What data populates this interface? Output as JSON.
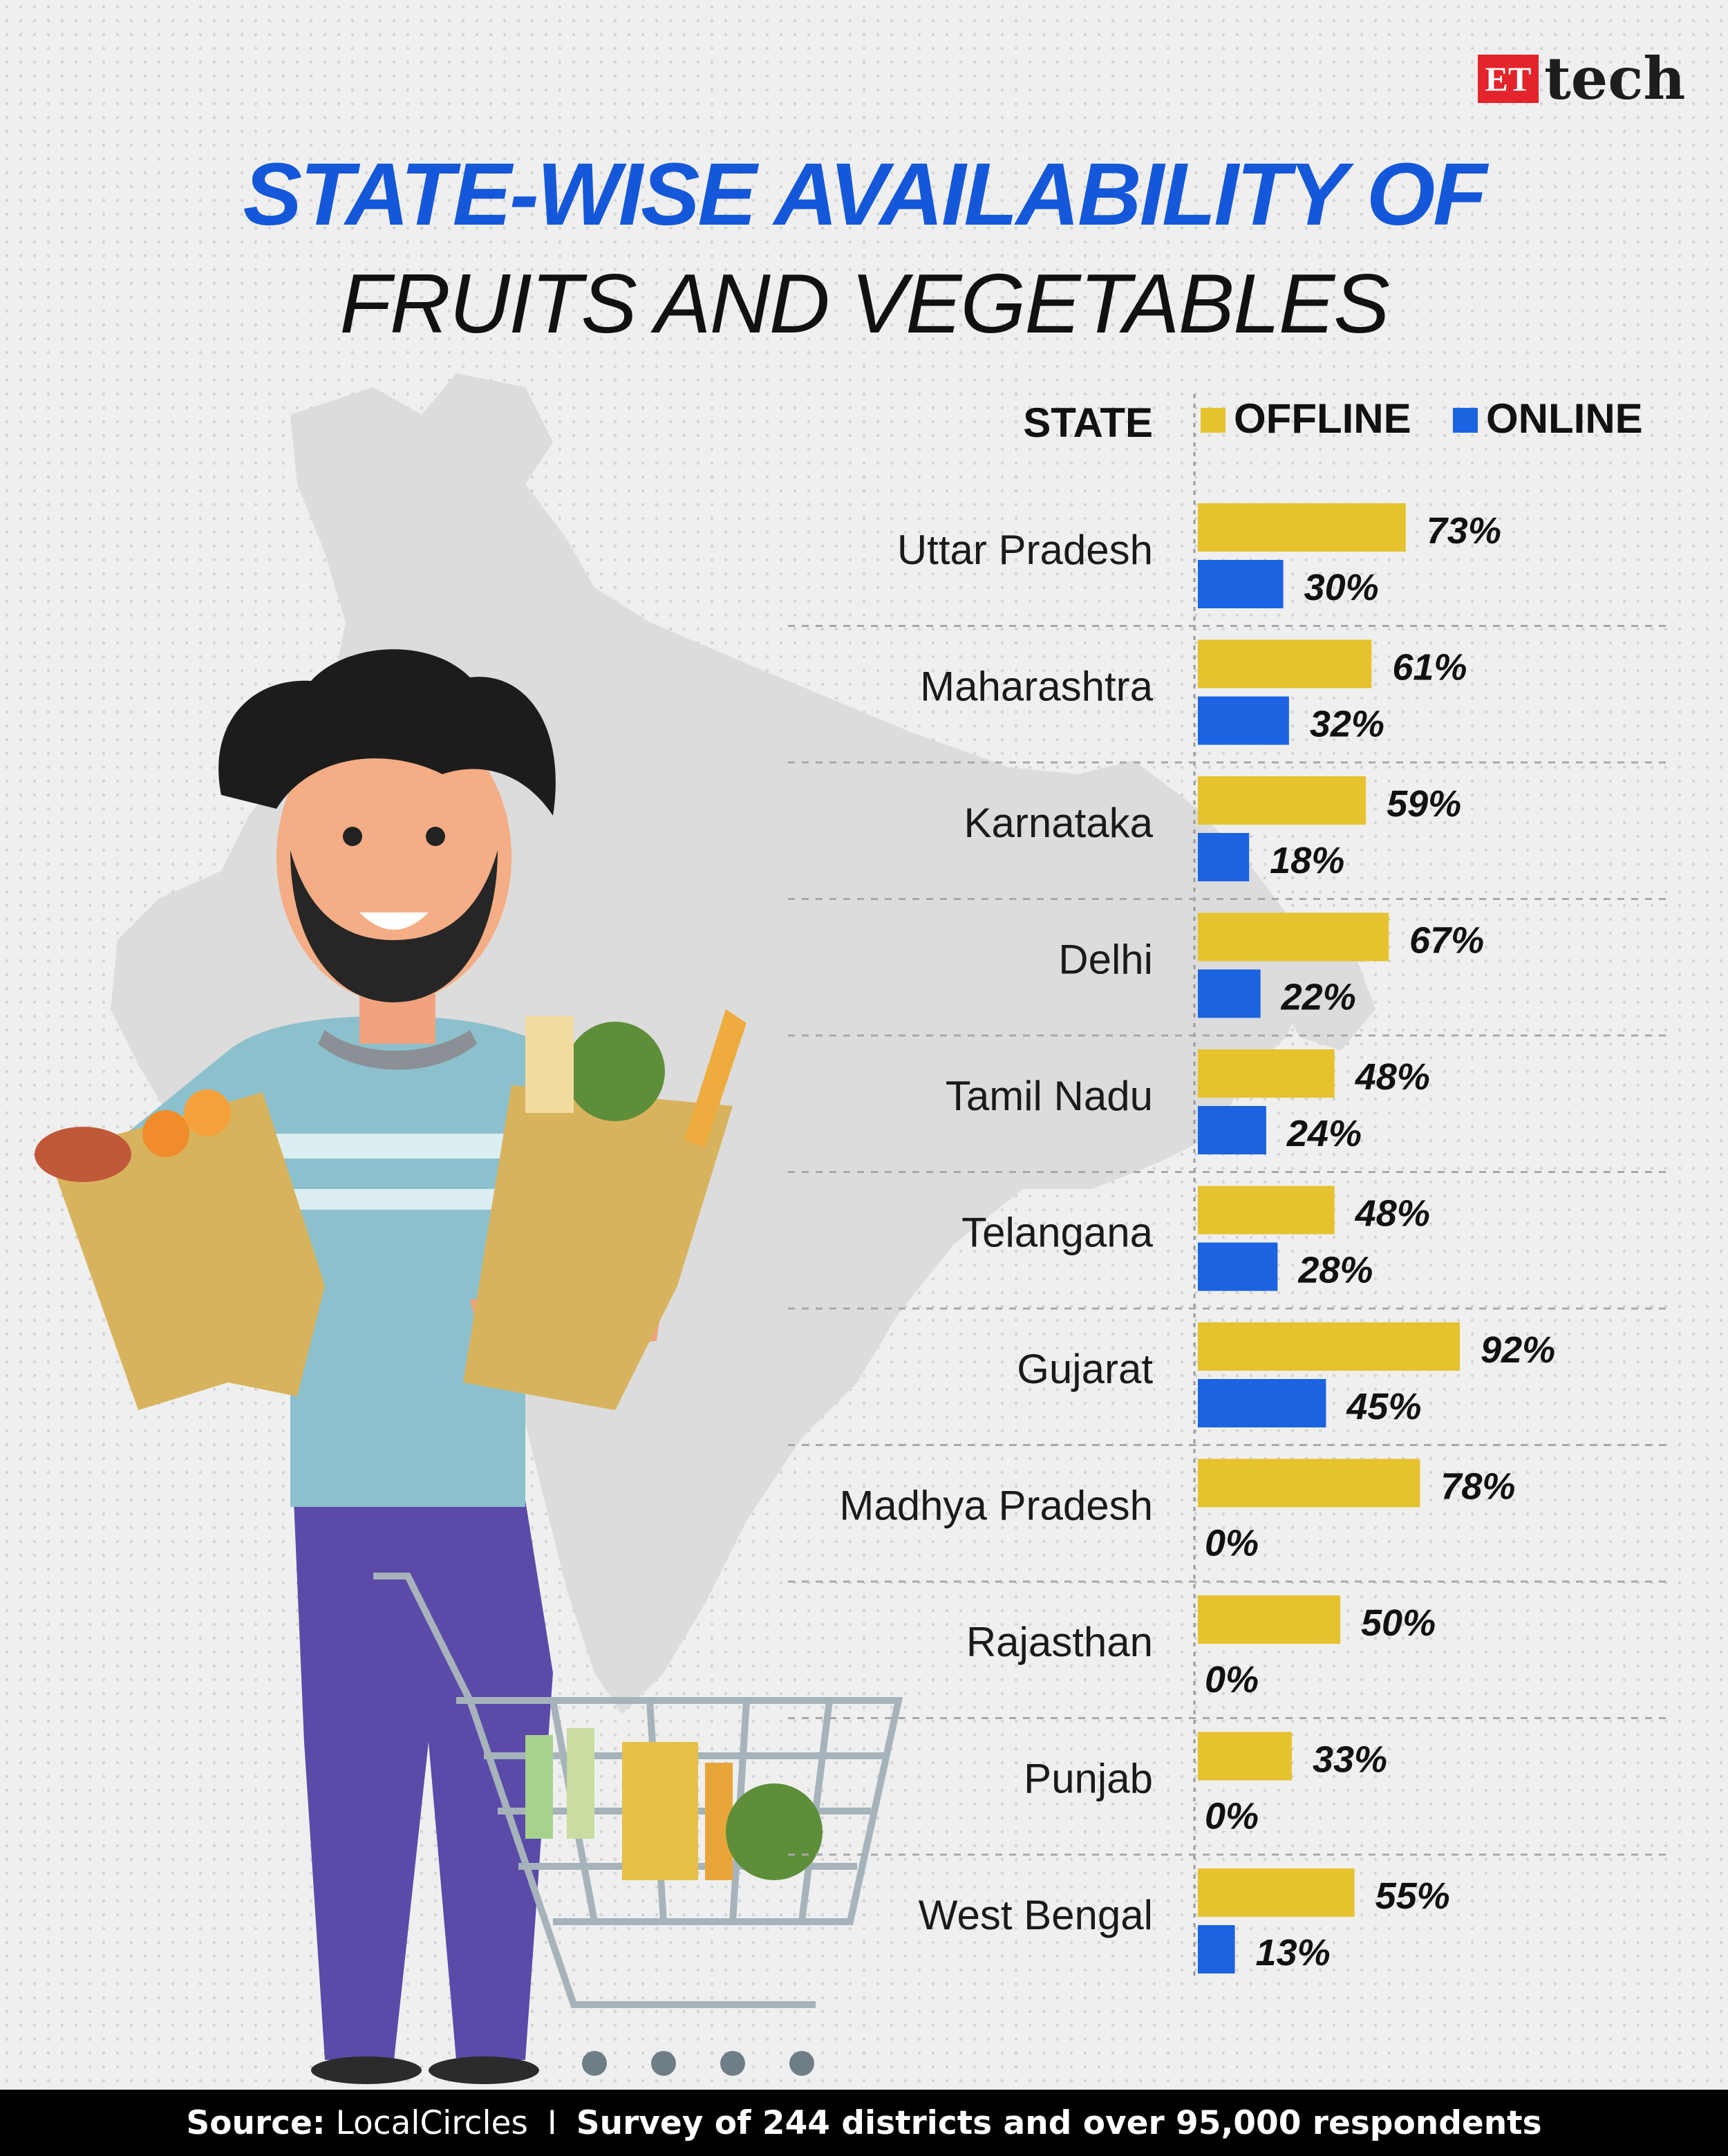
{
  "brand": {
    "mark": "ET",
    "name": "tech"
  },
  "title": {
    "line1": "STATE-WISE AVAILABILITY OF",
    "line2": "FRUITS AND VEGETABLES"
  },
  "colors": {
    "offline": "#e5c22e",
    "online": "#1b63e0",
    "title": "#1457d9"
  },
  "chart_data": {
    "type": "bar",
    "orientation": "horizontal",
    "category_header": "STATE",
    "categories": [
      "Uttar Pradesh",
      "Maharashtra",
      "Karnataka",
      "Delhi",
      "Tamil Nadu",
      "Telangana",
      "Gujarat",
      "Madhya Pradesh",
      "Rajasthan",
      "Punjab",
      "West Bengal"
    ],
    "series": [
      {
        "name": "OFFLINE",
        "color": "#e5c22e",
        "values": [
          73,
          61,
          59,
          67,
          48,
          48,
          92,
          78,
          50,
          33,
          55
        ]
      },
      {
        "name": "ONLINE",
        "color": "#1b63e0",
        "values": [
          30,
          32,
          18,
          22,
          24,
          28,
          45,
          0,
          0,
          0,
          13
        ]
      }
    ],
    "value_suffix": "%",
    "xlim": [
      0,
      100
    ],
    "legend": "top",
    "grid": false
  },
  "source": {
    "label": "Source:",
    "name": "LocalCircles",
    "separator": "I",
    "note": "Survey of 244 districts and over 95,000 respondents"
  }
}
